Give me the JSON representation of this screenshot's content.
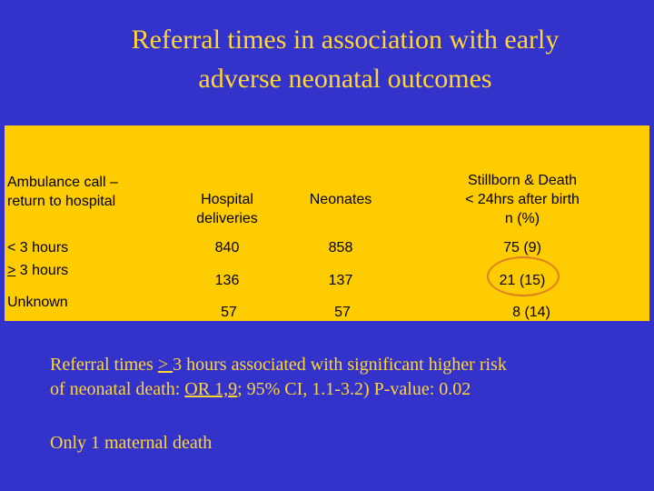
{
  "title": {
    "line1": "Referral times in association with early",
    "line2": "adverse neonatal outcomes"
  },
  "table": {
    "headers": {
      "ambulance_line1": "Ambulance call –",
      "ambulance_line2": "return to hospital",
      "hospital_line1": "Hospital",
      "hospital_line2": "deliveries",
      "neonates": "Neonates",
      "outcome_line1": "Stillborn & Death",
      "outcome_line2": "< 24hrs after birth",
      "outcome_line3": "n (%)"
    },
    "rows": [
      {
        "label": "< 3 hours",
        "hospital": "840",
        "neonates": "858",
        "outcome": "75 (9)"
      },
      {
        "label_symbol": ">",
        "label_rest": " 3 hours",
        "hospital": "136",
        "neonates": "137",
        "outcome": "21 (15)"
      },
      {
        "label": "Unknown",
        "hospital": "57",
        "neonates": "57",
        "outcome": "8 (14)"
      }
    ]
  },
  "notes": {
    "line1_pre": "Referral times ",
    "line1_symbol": "> ",
    "line1_post": "3 hours associated with significant higher risk",
    "line2_pre": "of neonatal death: ",
    "line2_or": "OR 1,9",
    "line2_post": "; 95% CI, 1.1-3.2) P-value: 0.02",
    "maternal": "Only 1 maternal death"
  },
  "colors": {
    "background": "#3333cc",
    "title_text": "#ffd633",
    "table_fill": "#ffcc00",
    "highlight_oval": "#e08020"
  }
}
